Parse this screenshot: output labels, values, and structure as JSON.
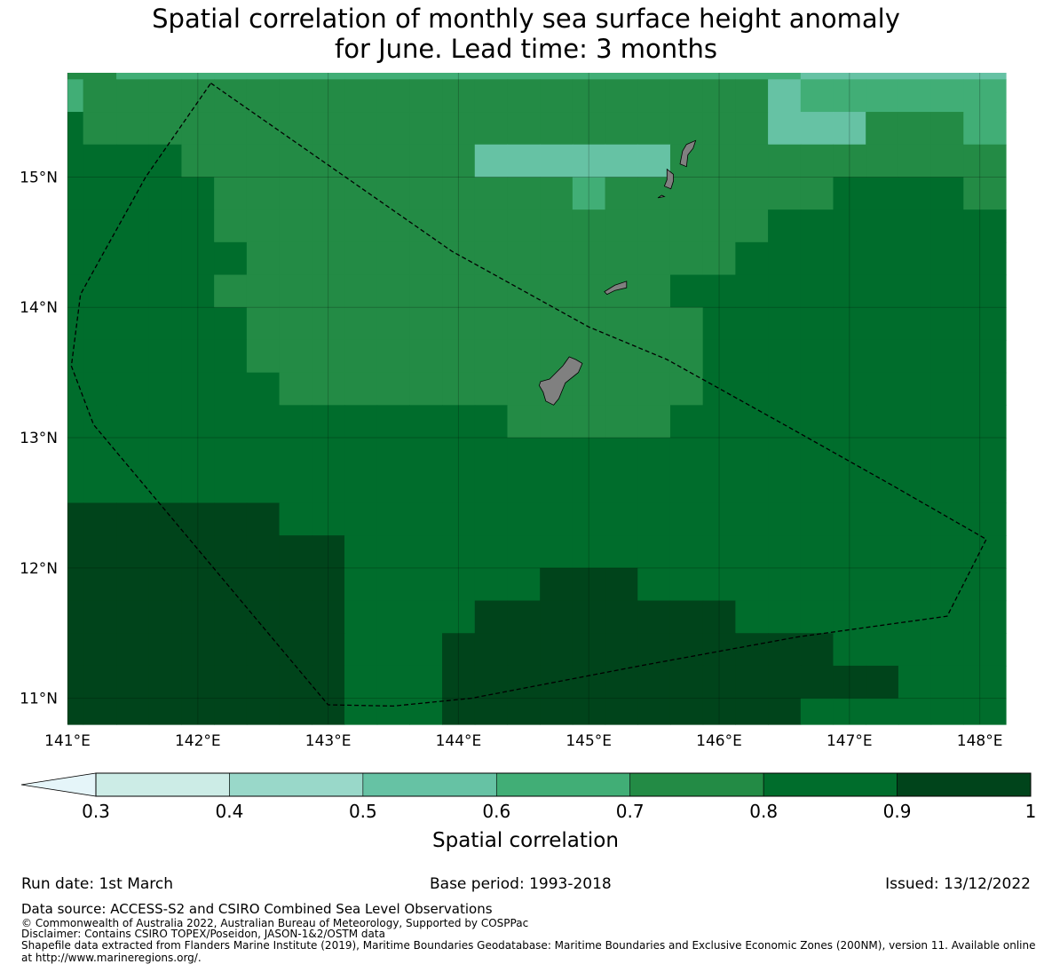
{
  "title": {
    "line1": "Spatial correlation of monthly sea surface height anomaly",
    "line2": "for June. Lead time: 3 months"
  },
  "palette": {
    "0.3-0.4": "#ccece6",
    "0.4-0.5": "#99d8c9",
    "0.5-0.6": "#66c2a4",
    "0.6-0.7": "#41ae76",
    "0.7-0.8": "#238b45",
    "0.8-0.9": "#006d2c",
    "0.9-1.0": "#00441b",
    "under": "#e5f5f9",
    "land": "#808080"
  },
  "chart_data": {
    "type": "heatmap",
    "title": "Spatial correlation of monthly sea surface height anomaly for June. Lead time: 3 months",
    "lon_range": [
      141.0,
      148.2
    ],
    "lat_range": [
      10.8,
      15.8
    ],
    "lon_ticks": [
      "141°E",
      "142°E",
      "143°E",
      "144°E",
      "145°E",
      "146°E",
      "147°E",
      "148°E"
    ],
    "lon_tick_values": [
      141,
      142,
      143,
      144,
      145,
      146,
      147,
      148
    ],
    "lat_ticks": [
      "11°N",
      "12°N",
      "13°N",
      "14°N",
      "15°N"
    ],
    "lat_tick_values": [
      11,
      12,
      13,
      14,
      15
    ],
    "grid_lon_edges": [
      141.0,
      141.12,
      141.375,
      141.625,
      141.875,
      142.125,
      142.375,
      142.625,
      142.875,
      143.125,
      143.375,
      143.625,
      143.875,
      144.125,
      144.375,
      144.625,
      144.875,
      145.125,
      145.375,
      145.625,
      145.875,
      146.125,
      146.375,
      146.625,
      146.875,
      147.125,
      147.375,
      147.625,
      147.875,
      148.2
    ],
    "grid_lat_edges": [
      15.8,
      15.75,
      15.5,
      15.25,
      15.0,
      14.75,
      14.5,
      14.25,
      14.0,
      13.75,
      13.5,
      13.25,
      13.0,
      12.75,
      12.5,
      12.25,
      12.0,
      11.75,
      11.5,
      11.25,
      11.0,
      10.8
    ],
    "cell_bins": [
      "443333333333333333333332222224",
      "344444444444444444444423333334",
      "544444444444444444444422244433",
      "555544444444422222244444444444",
      "555554444444444434444444555544",
      "555554444444444444444455555555",
      "555555444444444444444555555555",
      "555554444444444444455555555555",
      "555555444444444444445555555555",
      "555555444444444444445555555555",
      "555555544444444444445555555555",
      "555555555555554444455555555555",
      "555555555555555555555555555555",
      "555555555555555555555555555555",
      "666666655555555555555555555555",
      "666666666555555555555555555555",
      "666666666555555666555555555555",
      "666666666555566666666555555555",
      "666666666555666666666666555555",
      "666666666555666666666666665555",
      "666666666555666666666665555555",
      "666666666555666666666666555555"
    ],
    "bin_ranges": [
      [
        0.3,
        0.4
      ],
      [
        0.4,
        0.5
      ],
      [
        0.5,
        0.6
      ],
      [
        0.6,
        0.7
      ],
      [
        0.7,
        0.8
      ],
      [
        0.8,
        0.9
      ],
      [
        0.9,
        1.0
      ]
    ],
    "eez_boundary": [
      [
        142.1,
        15.72
      ],
      [
        143.95,
        14.43
      ],
      [
        145.0,
        13.85
      ],
      [
        145.6,
        13.6
      ],
      [
        146.5,
        13.1
      ],
      [
        147.3,
        12.65
      ],
      [
        148.05,
        12.22
      ],
      [
        147.75,
        11.63
      ],
      [
        146.6,
        11.47
      ],
      [
        145.4,
        11.25
      ],
      [
        144.1,
        11.0
      ],
      [
        143.5,
        10.94
      ],
      [
        143.0,
        10.95
      ],
      [
        141.2,
        13.1
      ],
      [
        141.03,
        13.55
      ],
      [
        141.1,
        14.1
      ],
      [
        141.6,
        15.0
      ],
      [
        142.1,
        15.72
      ]
    ],
    "islands": [
      {
        "name": "Guam",
        "outline": [
          [
            144.63,
            13.43
          ],
          [
            144.7,
            13.45
          ],
          [
            144.8,
            13.55
          ],
          [
            144.85,
            13.62
          ],
          [
            144.9,
            13.6
          ],
          [
            144.95,
            13.57
          ],
          [
            144.92,
            13.5
          ],
          [
            144.82,
            13.42
          ],
          [
            144.77,
            13.3
          ],
          [
            144.73,
            13.25
          ],
          [
            144.67,
            13.28
          ],
          [
            144.65,
            13.35
          ],
          [
            144.62,
            13.4
          ]
        ]
      },
      {
        "name": "Rota",
        "outline": [
          [
            145.12,
            14.12
          ],
          [
            145.2,
            14.17
          ],
          [
            145.29,
            14.2
          ],
          [
            145.29,
            14.15
          ],
          [
            145.2,
            14.13
          ],
          [
            145.14,
            14.1
          ]
        ]
      },
      {
        "name": "Tinian",
        "outline": [
          [
            145.58,
            14.93
          ],
          [
            145.6,
            14.98
          ],
          [
            145.6,
            15.06
          ],
          [
            145.65,
            15.02
          ],
          [
            145.65,
            14.97
          ],
          [
            145.63,
            14.91
          ]
        ]
      },
      {
        "name": "Saipan",
        "outline": [
          [
            145.7,
            15.1
          ],
          [
            145.72,
            15.2
          ],
          [
            145.75,
            15.25
          ],
          [
            145.82,
            15.28
          ],
          [
            145.8,
            15.22
          ],
          [
            145.76,
            15.17
          ],
          [
            145.75,
            15.08
          ]
        ]
      },
      {
        "name": "Aguijan",
        "outline": [
          [
            145.53,
            14.84
          ],
          [
            145.56,
            14.86
          ],
          [
            145.58,
            14.85
          ]
        ]
      }
    ]
  },
  "colorbar": {
    "label": "Spatial correlation",
    "ticks": [
      "0.3",
      "0.4",
      "0.5",
      "0.6",
      "0.7",
      "0.8",
      "0.9",
      "1"
    ],
    "tick_values": [
      0.3,
      0.4,
      0.5,
      0.6,
      0.7,
      0.8,
      0.9,
      1.0
    ]
  },
  "footer": {
    "run_date": "Run date: 1st March",
    "base_period": "Base period: 1993-2018",
    "issued": "Issued: 13/12/2022",
    "data_source": "Data source: ACCESS-S2 and CSIRO Combined Sea Level Observations",
    "copyright": "© Commonwealth of Australia 2022, Australian Bureau of Meteorology, Supported by COSPPac",
    "disclaimer": "Disclaimer: Contains CSIRO TOPEX/Poseidon, JASON-1&2/OSTM data",
    "shapefile_1": "Shapefile data extracted from Flanders Marine Institute (2019), Maritime Boundaries Geodatabase: Maritime Boundaries and Exclusive Economic Zones (200NM), version 11. Available online",
    "shapefile_2": "at http://www.marineregions.org/."
  }
}
